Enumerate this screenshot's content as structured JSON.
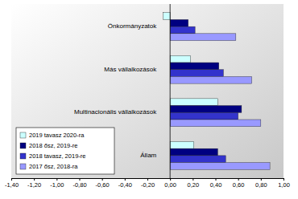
{
  "chart_data": {
    "type": "bar",
    "orientation": "horizontal",
    "grid": false,
    "legend": "lower left",
    "categories": [
      "Önkormányzatok",
      "Más vállalkozások",
      "Multinacionális vállalkozások",
      "Állam"
    ],
    "series": [
      {
        "name": "2019 tavasz 2020-ra",
        "color": "#ccffff",
        "values": [
          -0.06,
          0.18,
          0.42,
          0.21
        ]
      },
      {
        "name": "2018 ősz, 2019-re",
        "color": "#000080",
        "values": [
          0.16,
          0.43,
          0.63,
          0.42
        ]
      },
      {
        "name": "2018 tavasz, 2019-re",
        "color": "#3333cc",
        "values": [
          0.22,
          0.47,
          0.6,
          0.49
        ]
      },
      {
        "name": "2017 ősz, 2018-ra",
        "color": "#9999ff",
        "values": [
          0.58,
          0.72,
          0.8,
          0.88
        ]
      }
    ],
    "xlim": [
      -1.4,
      1.0
    ],
    "xticks": [
      {
        "value": -1.4,
        "label": "-1,40"
      },
      {
        "value": -1.2,
        "label": "-1,20"
      },
      {
        "value": -1.0,
        "label": "-1,00"
      },
      {
        "value": -0.8,
        "label": "-0,80"
      },
      {
        "value": -0.6,
        "label": "-0,60"
      },
      {
        "value": -0.4,
        "label": "-0,40"
      },
      {
        "value": -0.2,
        "label": "-0,20"
      },
      {
        "value": 0,
        "label": "0,00"
      },
      {
        "value": 0.2,
        "label": "0,20"
      },
      {
        "value": 0.4,
        "label": "0,40"
      },
      {
        "value": 0.6,
        "label": "0,60"
      },
      {
        "value": 0.8,
        "label": "0,80"
      },
      {
        "value": 1.0,
        "label": "1,00"
      }
    ]
  }
}
